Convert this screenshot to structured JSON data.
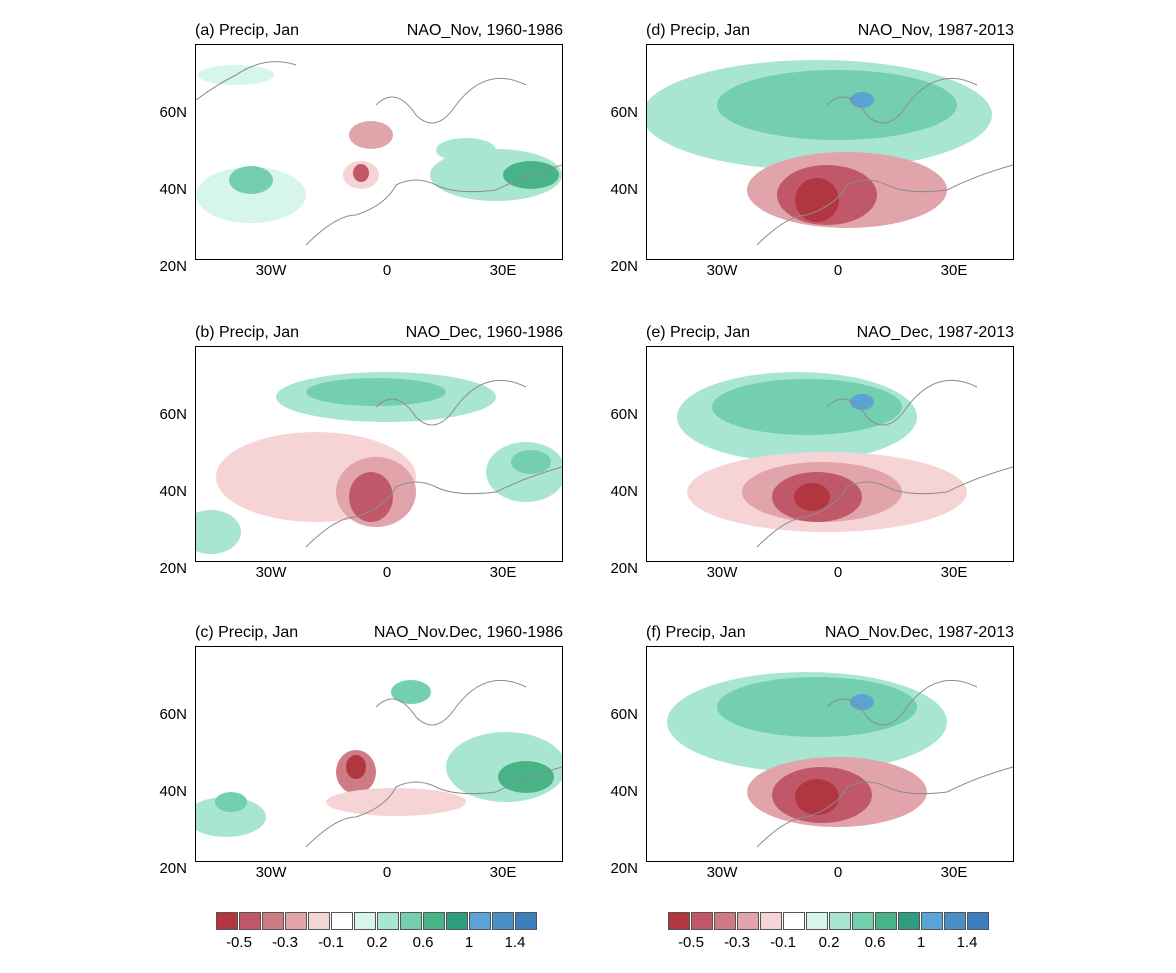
{
  "panels": [
    {
      "title": "(a) Precip, Jan",
      "subtitle": "NAO_Nov, 1960-1986"
    },
    {
      "title": "(b) Precip, Jan",
      "subtitle": "NAO_Dec, 1960-1986"
    },
    {
      "title": "(c) Precip, Jan",
      "subtitle": "NAO_Nov.Dec, 1960-1986"
    },
    {
      "title": "(d) Precip, Jan",
      "subtitle": "NAO_Nov, 1987-2013"
    },
    {
      "title": "(e) Precip, Jan",
      "subtitle": "NAO_Dec, 1987-2013"
    },
    {
      "title": "(f) Precip, Jan",
      "subtitle": "NAO_Nov.Dec, 1987-2013"
    }
  ],
  "lat_labels": [
    "60N",
    "40N",
    "20N"
  ],
  "lon_labels": [
    "30W",
    "0",
    "30E"
  ],
  "colorbar": {
    "colors": [
      "#b2363f",
      "#c0586a",
      "#cf7b86",
      "#e0a4aa",
      "#f6d4d6",
      "#ffffff",
      "#d6f5ec",
      "#a8e6d2",
      "#74cfae",
      "#49b388",
      "#2f9e80",
      "#5aa3d4",
      "#4a90c8",
      "#3c7fbf"
    ],
    "labels": [
      "-0.5",
      "-0.3",
      "-0.1",
      "0.2",
      "0.6",
      "1",
      "1.4"
    ]
  },
  "legend_colors": {
    "coast": "#8c8c8c",
    "stipple": "#222222"
  }
}
